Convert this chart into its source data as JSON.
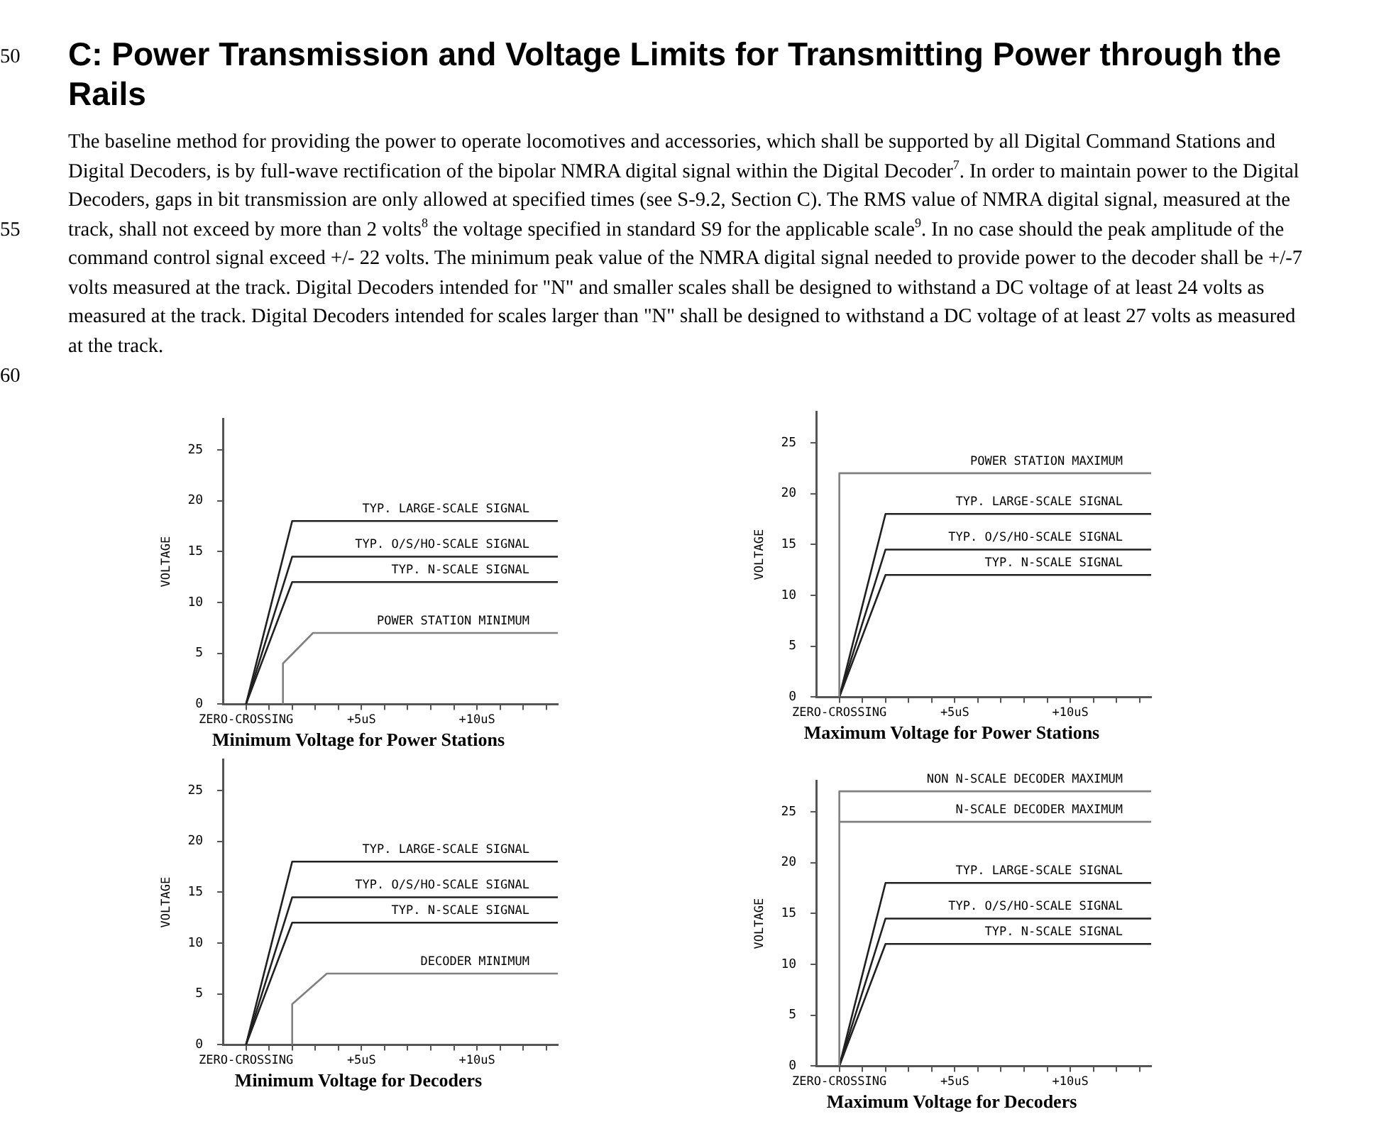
{
  "chart_data": [
    {
      "type": "other",
      "title": "C: Power Transmission and Voltage Limits for Transmitting Power through the Rails",
      "subtitle": "The baseline method for providing the power to operate locomotives and accessories, which shall be supported by all Digital Command Stations and Digital Decoders, is by full-wave rectification of the bipolar NMRA digital signal within the Digital Decoder$^{7}$. In order to maintain power to the Digital Decoders, gaps in bit transmission are only allowed at specified times (see S-9.2, Section C). The RMS value of NMRA digital signal, measured at the track, shall not exceed by more than 2 volts$^{8}$ the voltage specified in standard S9 for the applicable scale$^{9}$.  In no case should the peak amplitude of the command control signal exceed +/- 22 volts.  The minimum peak value of the NMRA digital signal needed to provide power to the decoder shall be +/-7 volts measured at the track. Digital Decoders intended for \"N\" and smaller scales shall be designed to withstand a DC voltage of at least 24 volts as measured at the track.  Digital Decoders intended for scales larger than \"N\" shall be designed to withstand a DC voltage of at least 27 volts as measured at the track.",
      "annotations": [
        "50",
        "55",
        "60"
      ]
    },
    {
      "type": "line",
      "title": "Minimum Voltage for Power Stations",
      "ylabel": "VOLTAGE",
      "marker": "none",
      "legend": false,
      "xlim": [
        -1,
        13.5
      ],
      "ylim": [
        0,
        28
      ],
      "xticks": [
        {
          "value": 0,
          "label": "ZERO-CROSSING"
        },
        {
          "value": 1,
          "label": null
        },
        {
          "value": 2,
          "label": null
        },
        {
          "value": 3,
          "label": null
        },
        {
          "value": 4,
          "label": null
        },
        {
          "value": 5,
          "label": "+5uS"
        },
        {
          "value": 6,
          "label": null
        },
        {
          "value": 7,
          "label": null
        },
        {
          "value": 8,
          "label": null
        },
        {
          "value": 9,
          "label": null
        },
        {
          "value": 10,
          "label": "+10uS"
        },
        {
          "value": 11,
          "label": null
        },
        {
          "value": 12,
          "label": null
        },
        {
          "value": 13,
          "label": null
        }
      ],
      "yticks": [
        0,
        5,
        10,
        15,
        20,
        25
      ],
      "series": [
        {
          "name": "TYP. LARGE-SCALE SIGNAL",
          "color": "#202020",
          "x": [
            0,
            2,
            13.5
          ],
          "values": [
            0,
            18,
            18
          ]
        },
        {
          "name": "TYP. O/S/HO-SCALE SIGNAL",
          "color": "#202020",
          "x": [
            0,
            2,
            13.5
          ],
          "values": [
            0,
            14.5,
            14.5
          ]
        },
        {
          "name": "TYP. N-SCALE SIGNAL",
          "color": "#202020",
          "x": [
            0,
            2,
            13.5
          ],
          "values": [
            0,
            12,
            12
          ]
        },
        {
          "name": "POWER STATION MINIMUM",
          "color": "#808080",
          "x": [
            1.6,
            1.6,
            2.9,
            13.5
          ],
          "values": [
            0,
            4,
            7,
            7
          ]
        }
      ]
    },
    {
      "type": "line",
      "title": "Maximum Voltage for Power Stations",
      "ylabel": "VOLTAGE",
      "marker": "none",
      "legend": false,
      "xlim": [
        -1,
        13.5
      ],
      "ylim": [
        0,
        28
      ],
      "xticks": [
        {
          "value": 0,
          "label": "ZERO-CROSSING"
        },
        {
          "value": 1,
          "label": null
        },
        {
          "value": 2,
          "label": null
        },
        {
          "value": 3,
          "label": null
        },
        {
          "value": 4,
          "label": null
        },
        {
          "value": 5,
          "label": "+5uS"
        },
        {
          "value": 6,
          "label": null
        },
        {
          "value": 7,
          "label": null
        },
        {
          "value": 8,
          "label": null
        },
        {
          "value": 9,
          "label": null
        },
        {
          "value": 10,
          "label": "+10uS"
        },
        {
          "value": 11,
          "label": null
        },
        {
          "value": 12,
          "label": null
        },
        {
          "value": 13,
          "label": null
        }
      ],
      "yticks": [
        0,
        5,
        10,
        15,
        20,
        25
      ],
      "series": [
        {
          "name": "POWER STATION MAXIMUM",
          "color": "#808080",
          "x": [
            0,
            0,
            13.5
          ],
          "values": [
            0,
            22,
            22
          ]
        },
        {
          "name": "TYP. LARGE-SCALE SIGNAL",
          "color": "#202020",
          "x": [
            0,
            2,
            13.5
          ],
          "values": [
            0,
            18,
            18
          ]
        },
        {
          "name": "TYP. O/S/HO-SCALE SIGNAL",
          "color": "#202020",
          "x": [
            0,
            2,
            13.5
          ],
          "values": [
            0,
            14.5,
            14.5
          ]
        },
        {
          "name": "TYP. N-SCALE SIGNAL",
          "color": "#202020",
          "x": [
            0,
            2,
            13.5
          ],
          "values": [
            0,
            12,
            12
          ]
        }
      ]
    },
    {
      "type": "line",
      "title": "Minimum Voltage for Decoders",
      "ylabel": "VOLTAGE",
      "marker": "none",
      "legend": false,
      "xlim": [
        -1,
        13.5
      ],
      "ylim": [
        0,
        28
      ],
      "xticks": [
        {
          "value": 0,
          "label": "ZERO-CROSSING"
        },
        {
          "value": 1,
          "label": null
        },
        {
          "value": 2,
          "label": null
        },
        {
          "value": 3,
          "label": null
        },
        {
          "value": 4,
          "label": null
        },
        {
          "value": 5,
          "label": "+5uS"
        },
        {
          "value": 6,
          "label": null
        },
        {
          "value": 7,
          "label": null
        },
        {
          "value": 8,
          "label": null
        },
        {
          "value": 9,
          "label": null
        },
        {
          "value": 10,
          "label": "+10uS"
        },
        {
          "value": 11,
          "label": null
        },
        {
          "value": 12,
          "label": null
        },
        {
          "value": 13,
          "label": null
        }
      ],
      "yticks": [
        0,
        5,
        10,
        15,
        20,
        25
      ],
      "series": [
        {
          "name": "TYP. LARGE-SCALE SIGNAL",
          "color": "#202020",
          "x": [
            0,
            2,
            13.5
          ],
          "values": [
            0,
            18,
            18
          ]
        },
        {
          "name": "TYP. O/S/HO-SCALE SIGNAL",
          "color": "#202020",
          "x": [
            0,
            2,
            13.5
          ],
          "values": [
            0,
            14.5,
            14.5
          ]
        },
        {
          "name": "TYP. N-SCALE SIGNAL",
          "color": "#202020",
          "x": [
            0,
            2,
            13.5
          ],
          "values": [
            0,
            12,
            12
          ]
        },
        {
          "name": "DECODER MINIMUM",
          "color": "#808080",
          "x": [
            2,
            2,
            3.5,
            13.5
          ],
          "values": [
            0,
            4,
            7,
            7
          ]
        }
      ]
    },
    {
      "type": "line",
      "title": "Maximum Voltage for Decoders",
      "ylabel": "VOLTAGE",
      "marker": "none",
      "legend": false,
      "xlim": [
        -1,
        13.5
      ],
      "ylim": [
        0,
        28
      ],
      "xticks": [
        {
          "value": 0,
          "label": "ZERO-CROSSING"
        },
        {
          "value": 1,
          "label": null
        },
        {
          "value": 2,
          "label": null
        },
        {
          "value": 3,
          "label": null
        },
        {
          "value": 4,
          "label": null
        },
        {
          "value": 5,
          "label": "+5uS"
        },
        {
          "value": 6,
          "label": null
        },
        {
          "value": 7,
          "label": null
        },
        {
          "value": 8,
          "label": null
        },
        {
          "value": 9,
          "label": null
        },
        {
          "value": 10,
          "label": "+10uS"
        },
        {
          "value": 11,
          "label": null
        },
        {
          "value": 12,
          "label": null
        },
        {
          "value": 13,
          "label": null
        }
      ],
      "yticks": [
        0,
        5,
        10,
        15,
        20,
        25
      ],
      "series": [
        {
          "name": "NON N-SCALE DECODER MAXIMUM",
          "color": "#808080",
          "x": [
            0,
            0,
            13.5
          ],
          "values": [
            0,
            27,
            27
          ]
        },
        {
          "name": "N-SCALE DECODER MAXIMUM",
          "color": "#808080",
          "x": [
            0,
            13.5
          ],
          "values": [
            24,
            24
          ]
        },
        {
          "name": "TYP. LARGE-SCALE SIGNAL",
          "color": "#202020",
          "x": [
            0,
            2,
            13.5
          ],
          "values": [
            0,
            18,
            18
          ]
        },
        {
          "name": "TYP. O/S/HO-SCALE SIGNAL",
          "color": "#202020",
          "x": [
            0,
            2,
            13.5
          ],
          "values": [
            0,
            14.5,
            14.5
          ]
        },
        {
          "name": "TYP. N-SCALE SIGNAL",
          "color": "#202020",
          "x": [
            0,
            2,
            13.5
          ],
          "values": [
            0,
            12,
            12
          ]
        }
      ]
    }
  ]
}
